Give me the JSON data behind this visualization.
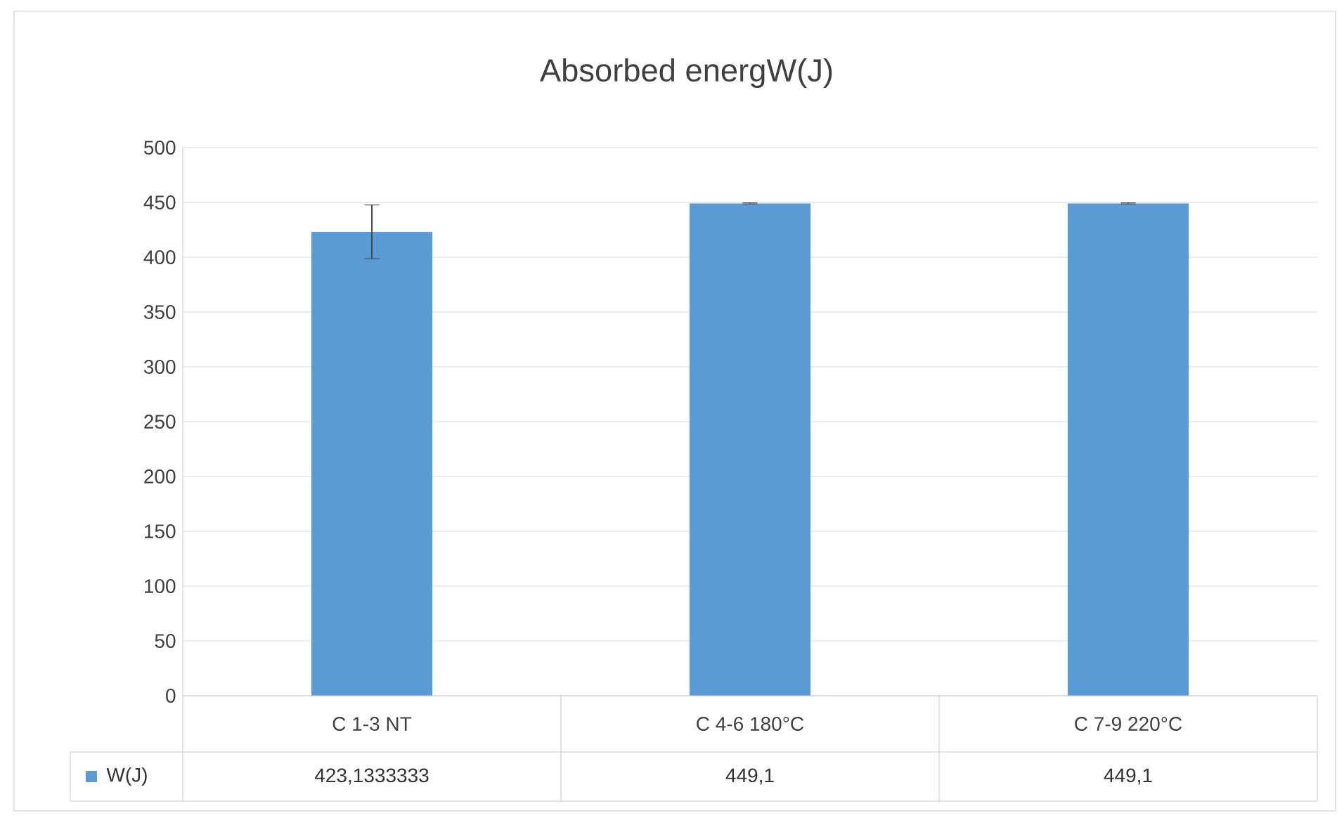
{
  "chart_data": {
    "type": "bar",
    "title": "Absorbed energW(J)",
    "categories": [
      "C 1-3 NT",
      "C 4-6 180°C",
      "C 7-9 220°C"
    ],
    "series": [
      {
        "name": "W(J)",
        "color": "#5b9bd5",
        "values": [
          423.1333333,
          449.1,
          449.1
        ],
        "errors": [
          24.5,
          0.5,
          0.5
        ],
        "value_labels": [
          "423,1333333",
          "449,1",
          "449,1"
        ]
      }
    ],
    "ylim": [
      0,
      500
    ],
    "yticks": [
      0,
      50,
      100,
      150,
      200,
      250,
      300,
      350,
      400,
      450,
      500
    ],
    "grid": "y",
    "legend": "bottom"
  }
}
